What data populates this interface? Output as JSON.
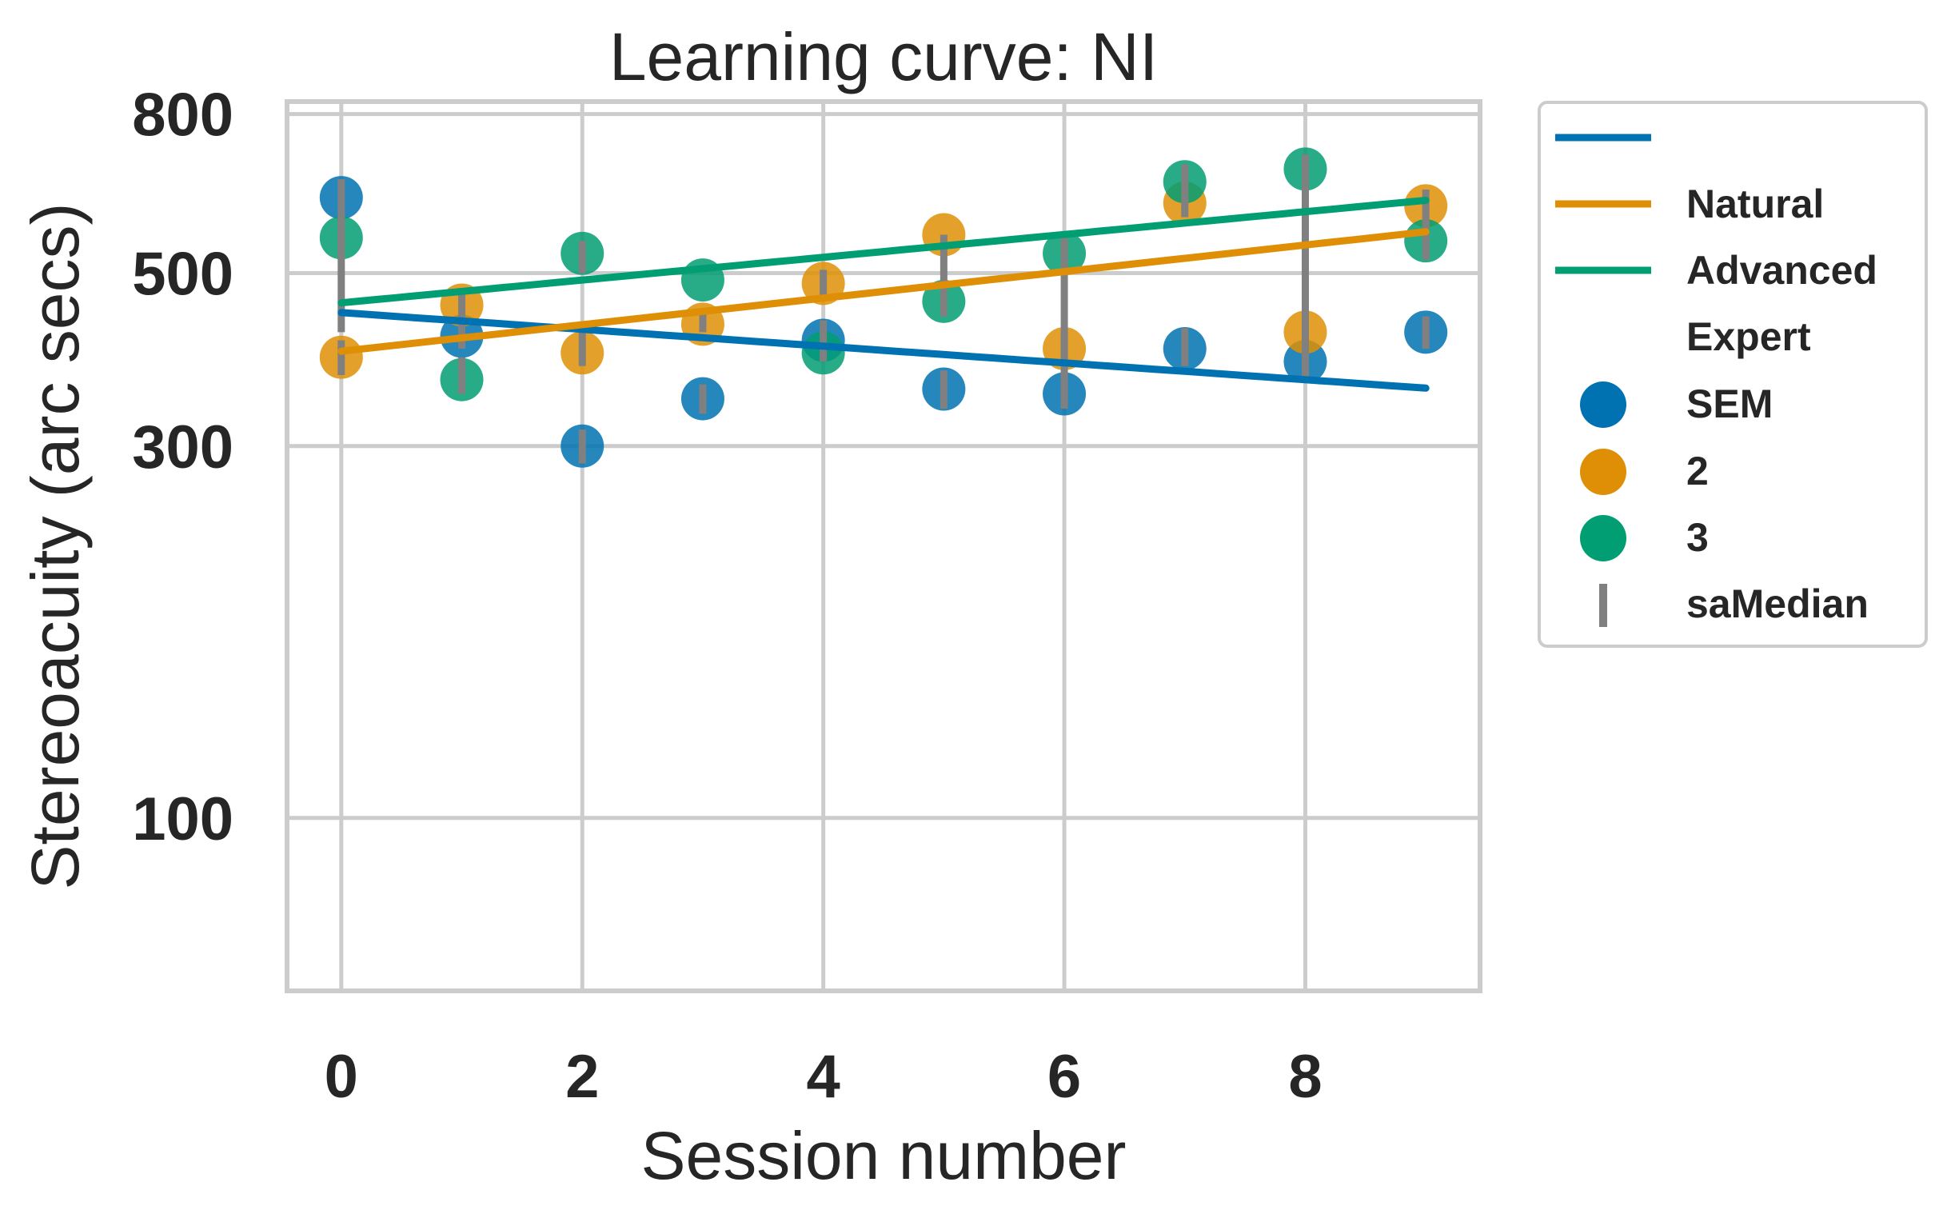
{
  "chart_data": {
    "type": "scatter",
    "title": "Learning curve: NI",
    "xlabel": "Session number",
    "ylabel": "Stereoacuity (arc secs)",
    "yscale": "log",
    "xlim": [
      -0.45,
      9.45
    ],
    "ylim": [
      60,
      830
    ],
    "xticks": [
      0,
      2,
      4,
      6,
      8
    ],
    "xtick_labels": [
      "0",
      "2",
      "4",
      "6",
      "8"
    ],
    "yticks": [
      100,
      300,
      500,
      800
    ],
    "ytick_labels": [
      "100",
      "300",
      "500",
      "800"
    ],
    "grid": true,
    "legend_position": "outside-right",
    "legend": [
      "",
      "Natural",
      "Advanced",
      "Expert",
      "SEM",
      "2",
      "3",
      "saMedian"
    ],
    "series": [
      {
        "color": "#0072b2",
        "x": [
          0,
          1,
          2,
          3,
          4,
          5,
          6,
          7,
          8,
          9
        ],
        "y": [
          625,
          415,
          300,
          345,
          410,
          355,
          350,
          400,
          385,
          420
        ],
        "fit": [
          445,
          356
        ]
      },
      {
        "color": "#de8f05",
        "x": [
          0,
          1,
          2,
          3,
          4,
          5,
          6,
          7,
          8,
          9
        ],
        "y": [
          390,
          455,
          395,
          430,
          485,
          560,
          400,
          615,
          420,
          610
        ],
        "fit": [
          397,
          565
        ]
      },
      {
        "color": "#029e73",
        "x": [
          0,
          1,
          2,
          3,
          4,
          5,
          6,
          7,
          8,
          9
        ],
        "y": [
          555,
          365,
          530,
          490,
          395,
          460,
          530,
          655,
          680,
          550
        ],
        "fit": [
          458,
          620
        ]
      }
    ],
    "errorbars": {
      "color": "#808080",
      "x": [
        0,
        0,
        0,
        1,
        1,
        2,
        2,
        2,
        3,
        3,
        4,
        4,
        5,
        5,
        6,
        6,
        7,
        7,
        8,
        8,
        9,
        9
      ],
      "low": [
        530,
        370,
        420,
        350,
        400,
        285,
        380,
        500,
        330,
        420,
        385,
        465,
        335,
        440,
        335,
        380,
        380,
        590,
        365,
        395,
        400,
        520
      ],
      "high": [
        660,
        410,
        590,
        390,
        470,
        315,
        420,
        550,
        360,
        445,
        435,
        505,
        375,
        560,
        420,
        560,
        425,
        690,
        450,
        710,
        440,
        640
      ]
    }
  }
}
